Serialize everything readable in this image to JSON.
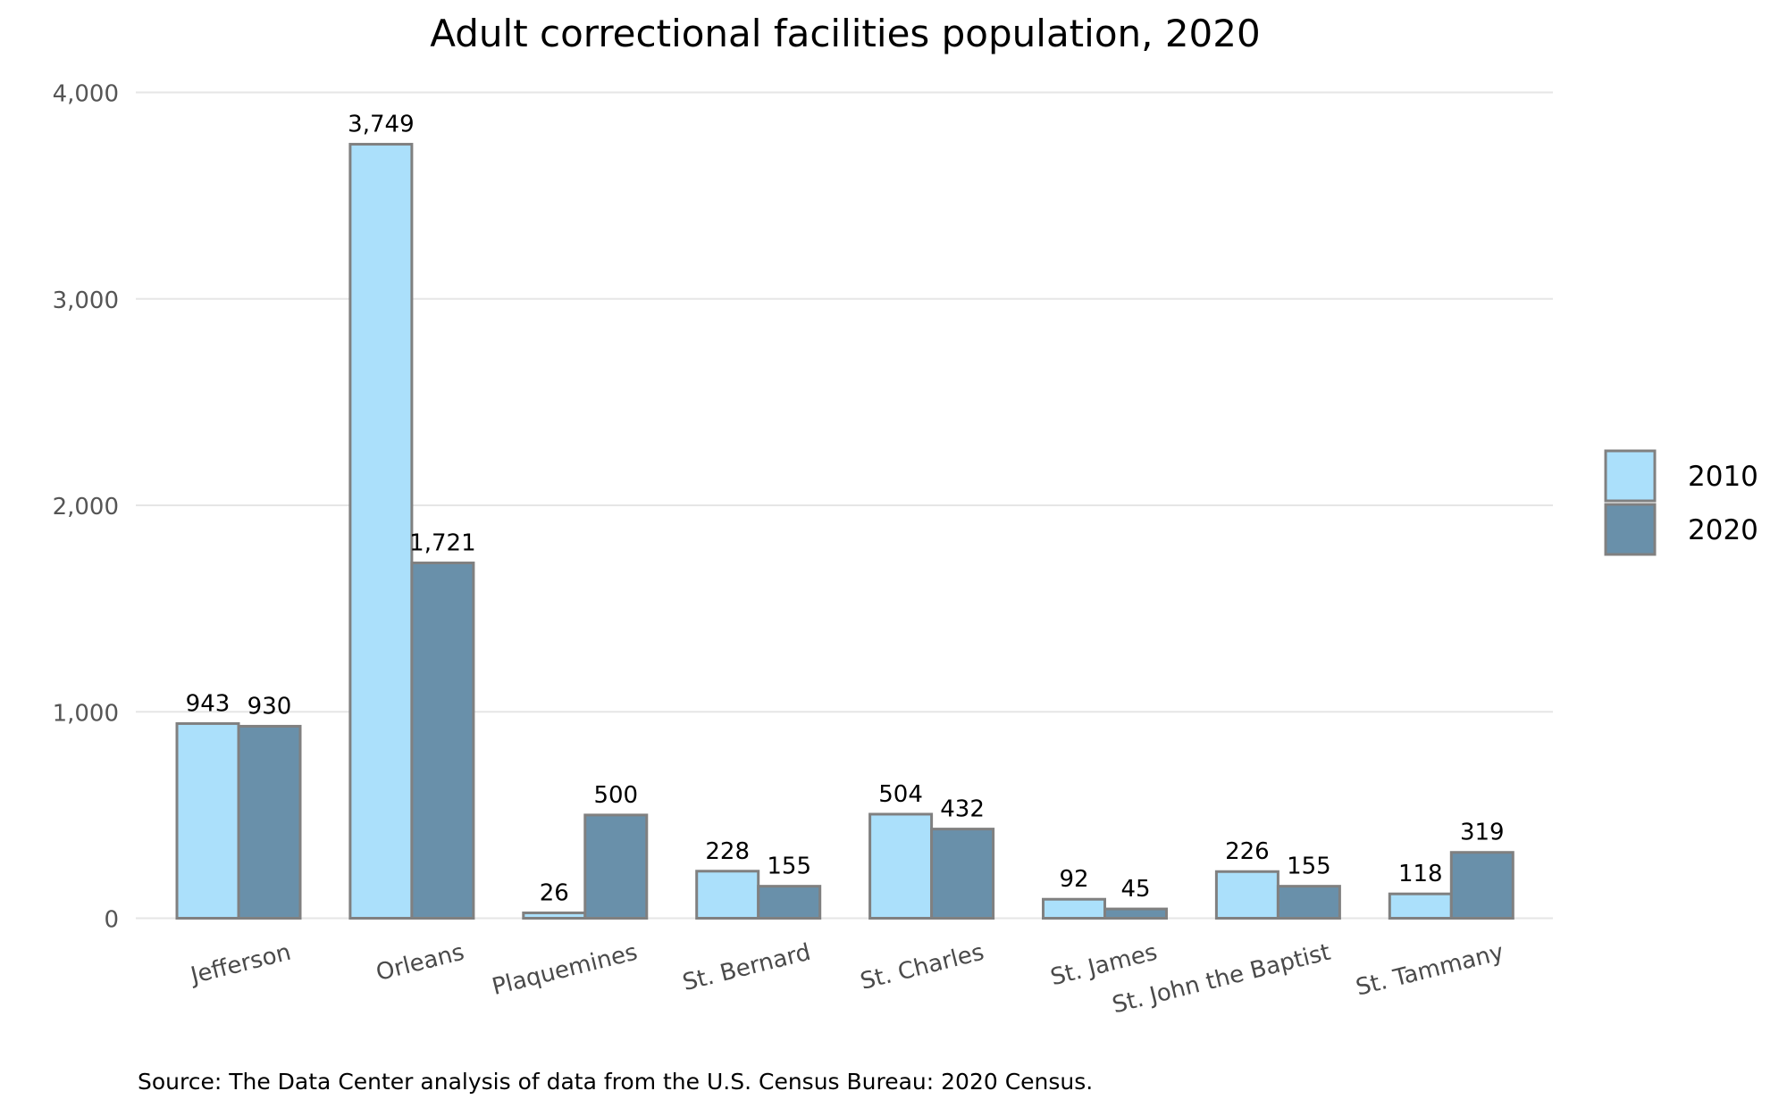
{
  "chart_data": {
    "type": "bar",
    "title": "Adult correctional facilities population, 2020",
    "xlabel": "",
    "ylabel": "",
    "ylim": [
      0,
      4000
    ],
    "yticks": [
      0,
      1000,
      2000,
      3000,
      4000
    ],
    "ytick_labels": [
      "0",
      "1,000",
      "2,000",
      "3,000",
      "4,000"
    ],
    "grid": true,
    "legend_position": "right",
    "categories": [
      "Jefferson",
      "Orleans",
      "Plaquemines",
      "St. Bernard",
      "St. Charles",
      "St. James",
      "St. John the Baptist",
      "St. Tammany"
    ],
    "series": [
      {
        "name": "2010",
        "color": "#abe0fb",
        "values": [
          943,
          3749,
          26,
          228,
          504,
          92,
          226,
          118
        ],
        "labels": [
          "943",
          "3,749",
          "26",
          "228",
          "504",
          "92",
          "226",
          "118"
        ]
      },
      {
        "name": "2020",
        "color": "#6990aa",
        "values": [
          930,
          1721,
          500,
          155,
          432,
          45,
          155,
          319
        ],
        "labels": [
          "930",
          "1,721",
          "500",
          "155",
          "432",
          "45",
          "155",
          "319"
        ]
      }
    ],
    "bar_border_color": "#808080",
    "source": "Source: The Data Center analysis of data from the U.S. Census Bureau: 2020 Census."
  }
}
